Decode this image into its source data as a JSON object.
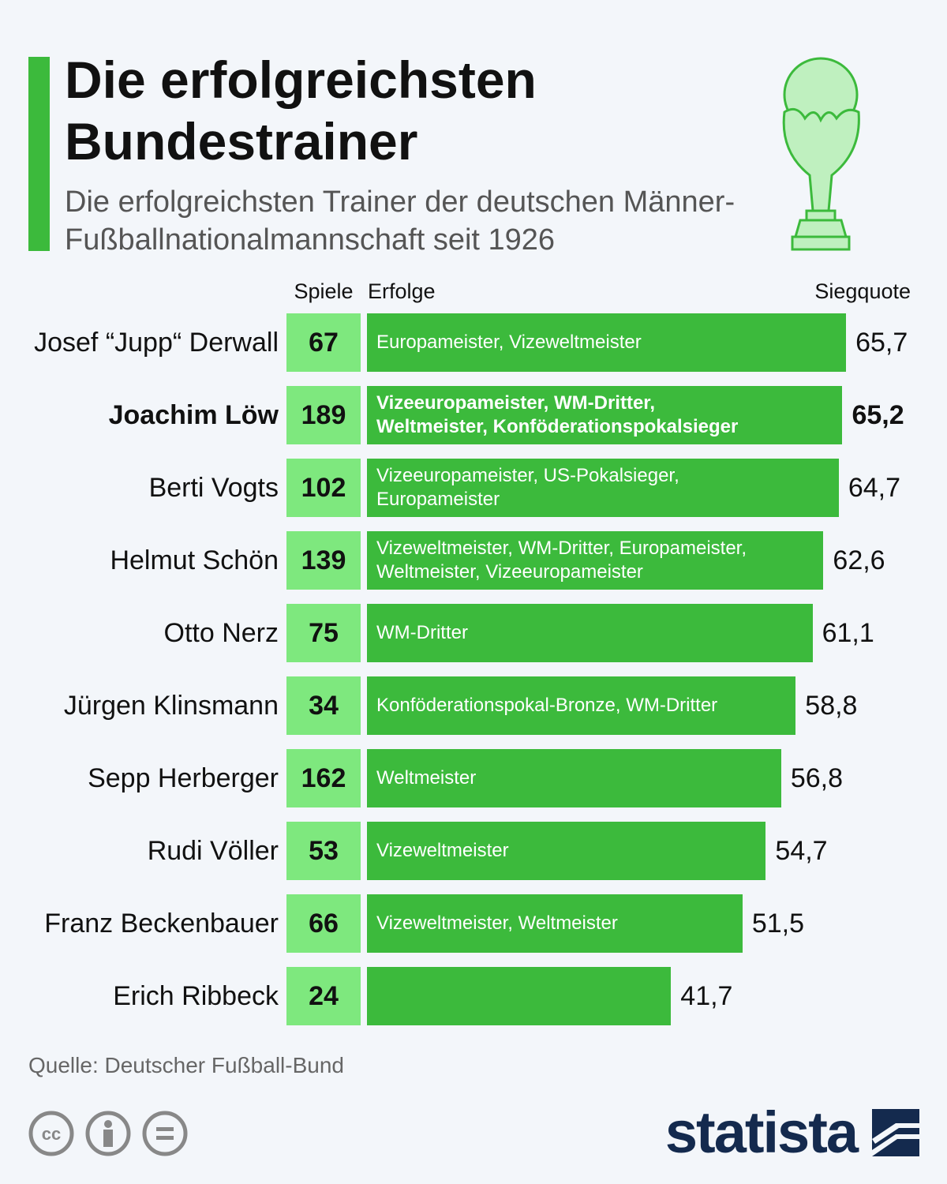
{
  "chart_data": {
    "type": "bar",
    "title": "Die erfolgreichsten Bundestrainer",
    "subtitle": "Die erfolgreichsten Trainer der deutschen Männer-Fußballnationalmannschaft seit 1926",
    "column_headers": [
      "Spiele",
      "Erfolge",
      "Siegquote"
    ],
    "categories": [
      "Josef “Jupp“ Derwall",
      "Joachim Löw",
      "Berti Vogts",
      "Helmut Schön",
      "Otto Nerz",
      "Jürgen Klinsmann",
      "Sepp Herberger",
      "Rudi Völler",
      "Franz Beckenbauer",
      "Erich Ribbeck"
    ],
    "games": {
      "name": "Spiele",
      "color": "#7ee87e",
      "values": [
        67,
        189,
        102,
        139,
        75,
        34,
        162,
        53,
        66,
        24
      ]
    },
    "achievements": [
      "Europameister, Vizeweltmeister",
      "Vizeeuropameister, WM-Dritter,\nWeltmeister, Konföderationspokalsieger",
      "Vizeeuropameister, US-Pokalsieger,\nEuropameister",
      "Vizeweltmeister, WM-Dritter, Europameister,\nWeltmeister, Vizeeuropameister",
      "WM-Dritter",
      "Konföderationspokal-Bronze, WM-Dritter",
      "Weltmeister",
      "Vizeweltmeister",
      "Vizeweltmeister, Weltmeister",
      null
    ],
    "series": [
      {
        "name": "Siegquote",
        "color": "#3cba3c",
        "values": [
          65.7,
          65.2,
          64.7,
          62.6,
          61.1,
          58.8,
          56.8,
          54.7,
          51.5,
          41.7
        ],
        "value_labels": [
          "65,7",
          "65,2",
          "64,7",
          "62,6",
          "61,1",
          "58,8",
          "56,8",
          "54,7",
          "51,5",
          "41,7"
        ]
      }
    ],
    "source": "Quelle: Deutscher Fußball-Bund",
    "brand": "statista"
  }
}
